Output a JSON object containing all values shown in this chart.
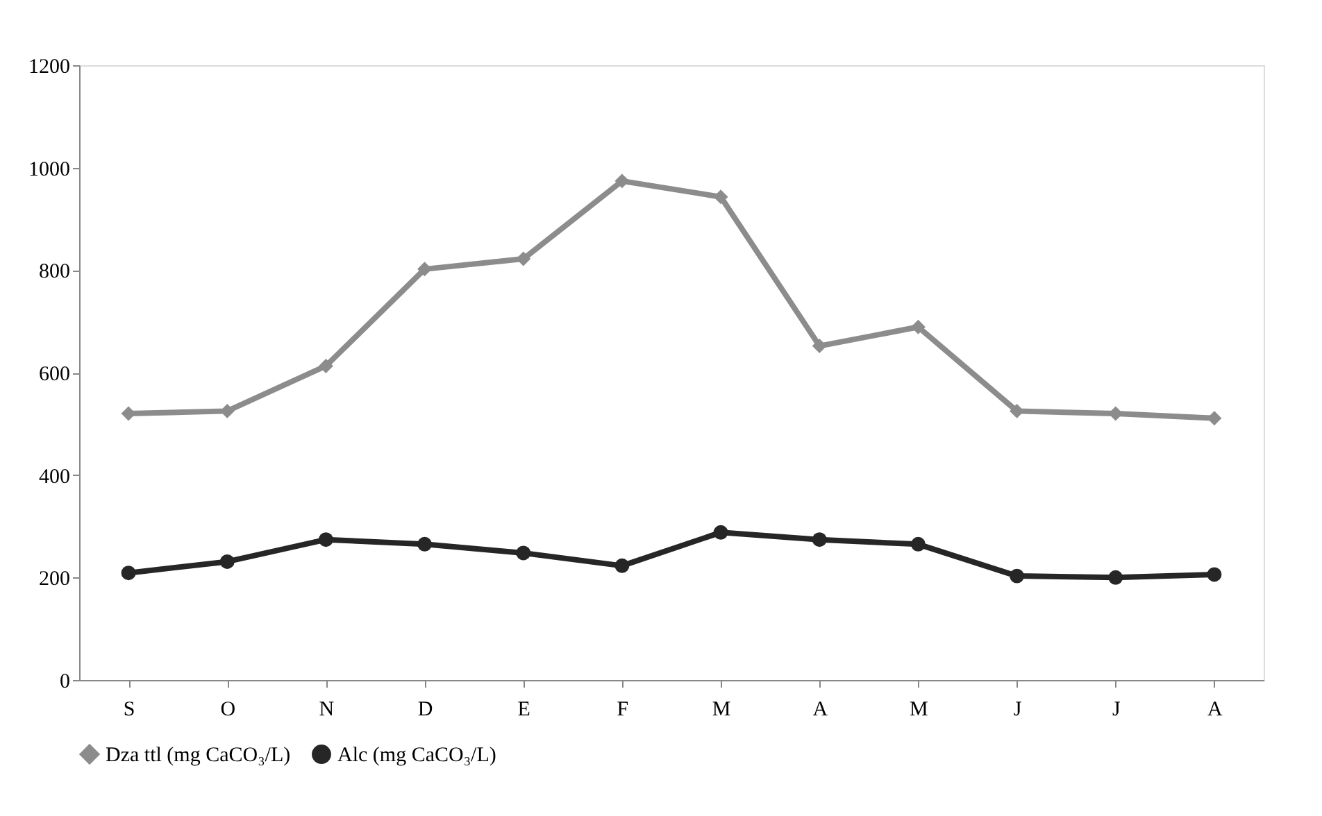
{
  "chart_data": {
    "type": "line",
    "categories": [
      "S",
      "O",
      "N",
      "D",
      "E",
      "F",
      "M",
      "A",
      "M",
      "J",
      "J",
      "A"
    ],
    "series": [
      {
        "name": "Dza ttl (mg CaCO₃/L)",
        "color": "#8c8c8c",
        "marker": "diamond",
        "values": [
          520,
          525,
          613,
          802,
          822,
          974,
          943,
          652,
          689,
          525,
          520,
          511
        ]
      },
      {
        "name": "Alc (mg CaCO₃/L)",
        "color": "#262626",
        "marker": "circle",
        "values": [
          209,
          231,
          274,
          265,
          248,
          223,
          288,
          274,
          265,
          203,
          200,
          206
        ]
      }
    ],
    "ylim": [
      0,
      1200
    ],
    "yticks": [
      0,
      200,
      400,
      600,
      800,
      1000,
      1200
    ],
    "grid": false,
    "legend": "bottom",
    "line_style": "solid"
  }
}
